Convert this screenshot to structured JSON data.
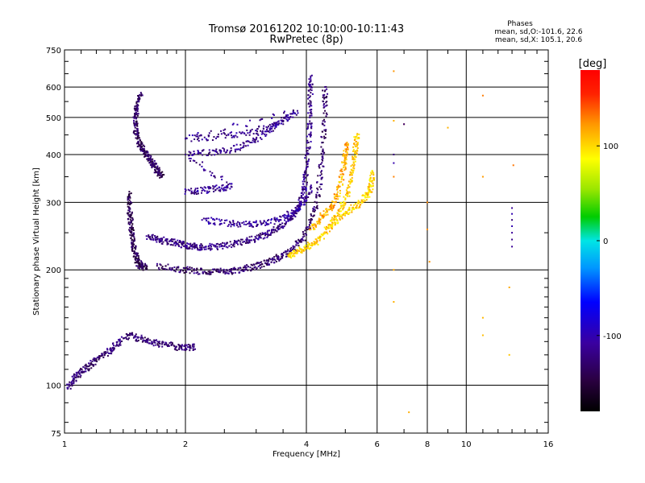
{
  "chart_data": {
    "type": "scatter",
    "title": "Tromsø 20161202 10:10:00-10:11:43",
    "subtitle": "RwPretec (8p)",
    "xlabel": "Frequency [MHz]",
    "ylabel": "Stationary phase Virtual Height [km]",
    "x_scale": "log",
    "y_scale": "log",
    "xlim": [
      1,
      16
    ],
    "ylim": [
      75,
      750
    ],
    "x_ticks": [
      1,
      2,
      4,
      6,
      8,
      10,
      16
    ],
    "y_ticks": [
      75,
      100,
      200,
      300,
      400,
      500,
      600,
      750
    ],
    "grid_x": [
      2,
      4,
      6,
      8,
      10
    ],
    "grid_y": [
      100,
      200,
      300,
      400,
      500,
      600
    ],
    "phases_legend": {
      "title": "Phases",
      "line1": "mean, sd,O:-101.6, 22.6",
      "line2": "mean, sd,X: 105.1, 20.6"
    },
    "colorbar": {
      "label": "[deg]",
      "range": [
        -180,
        180
      ],
      "ticks": [
        100,
        0,
        -100
      ]
    },
    "traces": [
      {
        "desc": "O-mode E/F1 trace",
        "phase_deg": -135,
        "points": [
          [
            1.55,
            580
          ],
          [
            1.52,
            540
          ],
          [
            1.5,
            500
          ],
          [
            1.5,
            470
          ],
          [
            1.52,
            440
          ],
          [
            1.55,
            420
          ],
          [
            1.58,
            405
          ],
          [
            1.62,
            395
          ],
          [
            1.65,
            380
          ],
          [
            1.68,
            370
          ],
          [
            1.72,
            360
          ],
          [
            1.75,
            350
          ]
        ]
      },
      {
        "desc": "O-mode low band",
        "phase_deg": -140,
        "points": [
          [
            1.45,
            320
          ],
          [
            1.45,
            290
          ],
          [
            1.46,
            270
          ],
          [
            1.47,
            250
          ],
          [
            1.48,
            235
          ],
          [
            1.5,
            220
          ],
          [
            1.52,
            210
          ],
          [
            1.55,
            205
          ],
          [
            1.6,
            203
          ]
        ]
      },
      {
        "desc": "O-mode F trace",
        "phase_deg": -120,
        "points": [
          [
            1.6,
            245
          ],
          [
            1.7,
            240
          ],
          [
            1.8,
            237
          ],
          [
            1.9,
            235
          ],
          [
            2.0,
            232
          ],
          [
            2.1,
            230
          ],
          [
            2.2,
            229
          ],
          [
            2.4,
            230
          ],
          [
            2.6,
            233
          ],
          [
            2.8,
            237
          ],
          [
            3.0,
            242
          ],
          [
            3.2,
            248
          ],
          [
            3.4,
            257
          ],
          [
            3.6,
            268
          ],
          [
            3.75,
            282
          ],
          [
            3.85,
            300
          ],
          [
            3.95,
            330
          ],
          [
            4.0,
            370
          ],
          [
            4.05,
            430
          ],
          [
            4.08,
            500
          ],
          [
            4.1,
            580
          ],
          [
            4.1,
            640
          ]
        ]
      },
      {
        "desc": "O-mode bottom trace",
        "phase_deg": -130,
        "points": [
          [
            1.7,
            205
          ],
          [
            1.9,
            201
          ],
          [
            2.1,
            199
          ],
          [
            2.3,
            198
          ],
          [
            2.5,
            198
          ],
          [
            2.7,
            200
          ],
          [
            2.9,
            203
          ],
          [
            3.1,
            207
          ],
          [
            3.3,
            212
          ],
          [
            3.5,
            218
          ],
          [
            3.7,
            226
          ],
          [
            3.9,
            240
          ],
          [
            4.1,
            265
          ],
          [
            4.25,
            300
          ],
          [
            4.35,
            360
          ],
          [
            4.4,
            430
          ],
          [
            4.45,
            520
          ],
          [
            4.45,
            600
          ]
        ]
      },
      {
        "desc": "O-mode middle trace",
        "phase_deg": -110,
        "points": [
          [
            2.2,
            270
          ],
          [
            2.5,
            265
          ],
          [
            2.8,
            263
          ],
          [
            3.1,
            264
          ],
          [
            3.4,
            270
          ],
          [
            3.7,
            282
          ],
          [
            3.95,
            300
          ],
          [
            4.1,
            330
          ]
        ]
      },
      {
        "desc": "O-mode upper traces",
        "phase_deg": -115,
        "points": [
          [
            2.0,
            320
          ],
          [
            2.2,
            322
          ],
          [
            2.4,
            326
          ],
          [
            2.6,
            330
          ],
          [
            2.0,
            400
          ],
          [
            2.3,
            405
          ],
          [
            2.6,
            410
          ],
          [
            2.9,
            430
          ],
          [
            3.2,
            460
          ],
          [
            3.5,
            490
          ],
          [
            3.8,
            520
          ],
          [
            2.0,
            440
          ],
          [
            2.4,
            445
          ],
          [
            2.8,
            455
          ],
          [
            3.2,
            470
          ],
          [
            3.6,
            500
          ]
        ]
      },
      {
        "desc": "O-mode low echoes",
        "phase_deg": -125,
        "points": [
          [
            1.02,
            98
          ],
          [
            1.06,
            105
          ],
          [
            1.1,
            108
          ],
          [
            1.15,
            112
          ],
          [
            1.2,
            117
          ],
          [
            1.28,
            122
          ],
          [
            1.35,
            128
          ],
          [
            1.45,
            135
          ],
          [
            1.55,
            132
          ],
          [
            1.65,
            130
          ],
          [
            1.75,
            128
          ],
          [
            1.9,
            126
          ],
          [
            2.0,
            125
          ],
          [
            2.1,
            126
          ]
        ]
      },
      {
        "desc": "X-mode F trace",
        "phase_deg": 105,
        "points": [
          [
            3.6,
            218
          ],
          [
            3.8,
            222
          ],
          [
            4.0,
            228
          ],
          [
            4.2,
            236
          ],
          [
            4.4,
            247
          ],
          [
            4.6,
            262
          ],
          [
            4.8,
            280
          ],
          [
            5.0,
            305
          ],
          [
            5.15,
            340
          ],
          [
            5.25,
            380
          ],
          [
            5.3,
            420
          ],
          [
            5.35,
            450
          ]
        ]
      },
      {
        "desc": "X-mode inner trace",
        "phase_deg": 115,
        "points": [
          [
            4.1,
            255
          ],
          [
            4.3,
            270
          ],
          [
            4.5,
            285
          ],
          [
            4.7,
            300
          ],
          [
            4.85,
            330
          ],
          [
            4.95,
            370
          ],
          [
            5.0,
            400
          ],
          [
            5.05,
            430
          ]
        ]
      },
      {
        "desc": "X-mode outer trace",
        "phase_deg": 100,
        "points": [
          [
            4.6,
            260
          ],
          [
            4.9,
            275
          ],
          [
            5.2,
            290
          ],
          [
            5.5,
            300
          ],
          [
            5.7,
            315
          ],
          [
            5.8,
            330
          ],
          [
            5.85,
            360
          ]
        ]
      },
      {
        "desc": "Sparse high-frequency echoes",
        "phase_deg": 120,
        "points": [
          [
            6.6,
            660
          ],
          [
            6.6,
            490
          ],
          [
            7.0,
            480
          ],
          [
            6.6,
            350
          ],
          [
            6.6,
            200
          ],
          [
            6.6,
            165
          ],
          [
            7.2,
            85
          ],
          [
            8.0,
            300
          ],
          [
            8.0,
            255
          ],
          [
            8.1,
            210
          ],
          [
            9.0,
            470
          ],
          [
            11.0,
            570
          ],
          [
            11.0,
            350
          ],
          [
            11.0,
            150
          ],
          [
            11.0,
            135
          ],
          [
            12.8,
            180
          ],
          [
            12.8,
            120
          ],
          [
            13.1,
            375
          ]
        ]
      },
      {
        "desc": "Sparse blue echoes",
        "phase_deg": -110,
        "points": [
          [
            6.6,
            400
          ],
          [
            6.6,
            380
          ],
          [
            7.0,
            480
          ],
          [
            13.0,
            290
          ],
          [
            13.0,
            280
          ],
          [
            13.0,
            270
          ],
          [
            13.0,
            260
          ],
          [
            13.0,
            250
          ],
          [
            13.0,
            240
          ],
          [
            13.0,
            230
          ]
        ]
      }
    ]
  }
}
